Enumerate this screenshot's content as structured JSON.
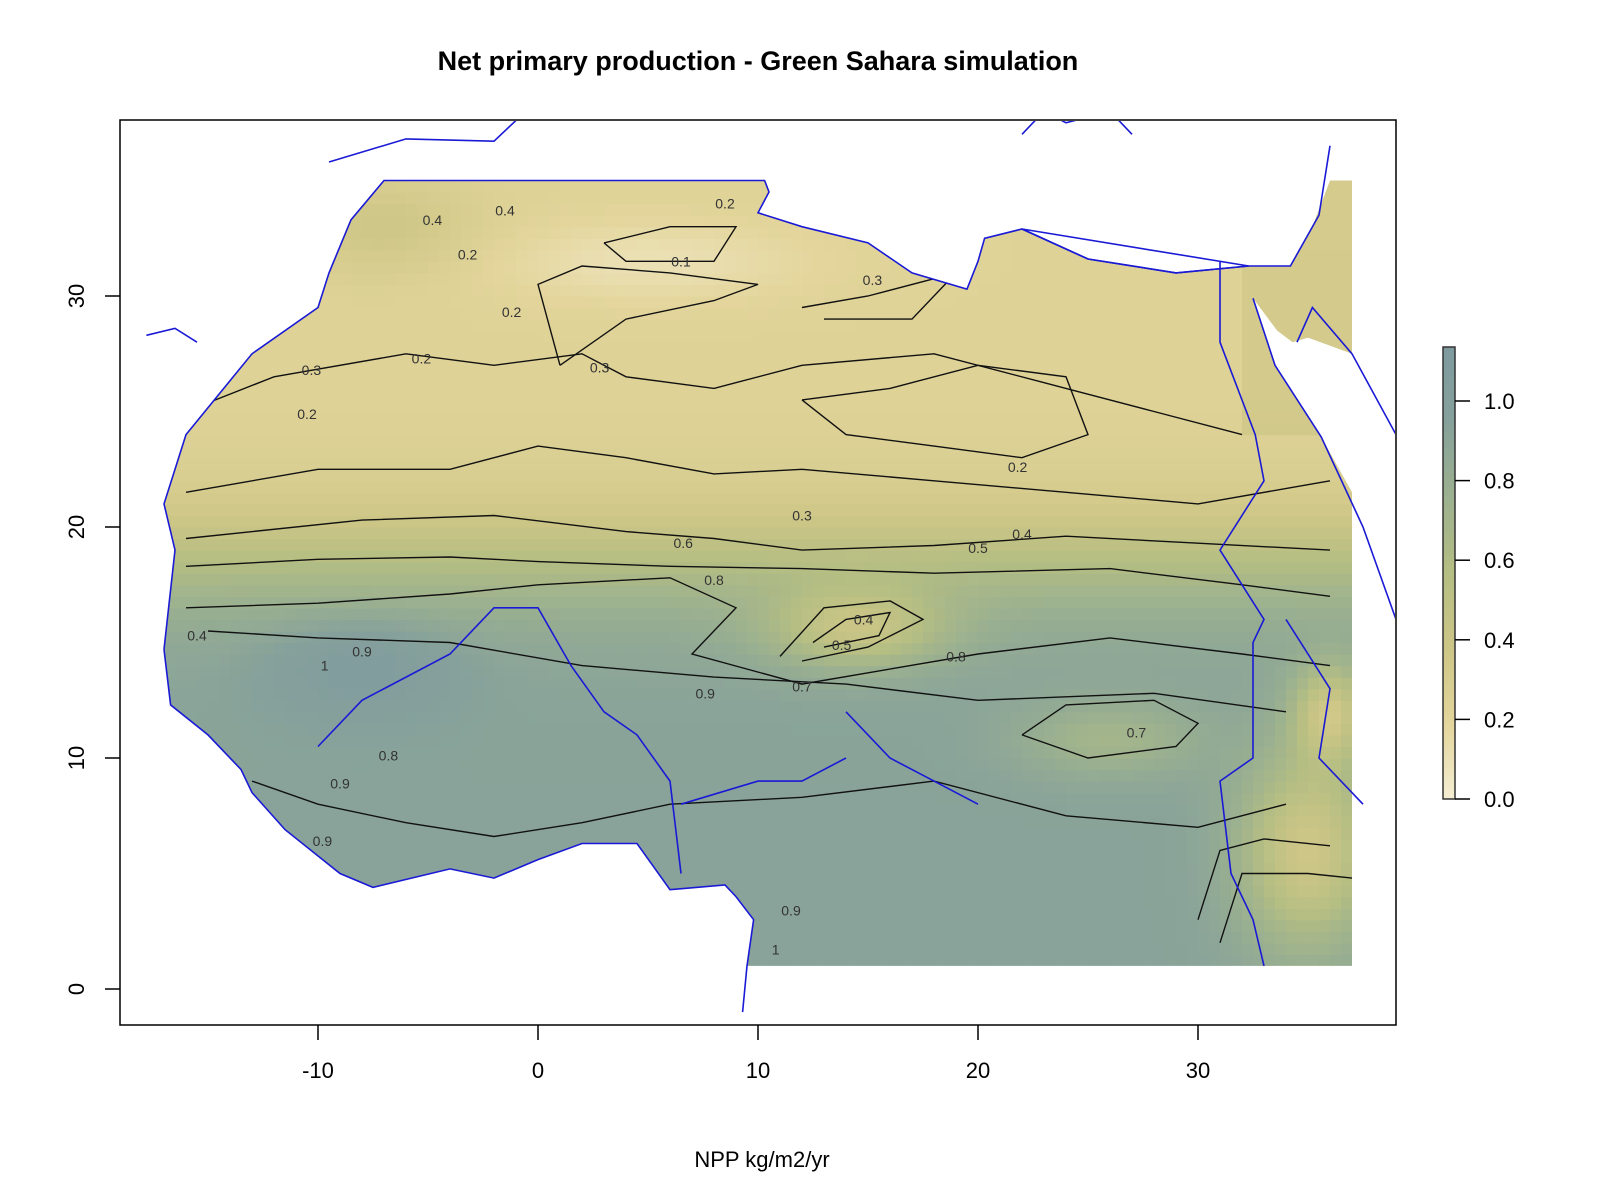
{
  "chart_data": {
    "type": "heatmap",
    "title": "Net primary production - Green Sahara simulation",
    "xlabel": "",
    "ylabel": "",
    "colorbar_label": "NPP kg/m2/yr",
    "xlim": [
      -19,
      39
    ],
    "ylim": [
      -1.5,
      37.6
    ],
    "x_ticks": [
      -10,
      0,
      10,
      20,
      30
    ],
    "y_ticks": [
      0,
      10,
      20,
      30
    ],
    "x_tick_labels": [
      "-10",
      "0",
      "10",
      "20",
      "30"
    ],
    "y_tick_labels": [
      "0",
      "10",
      "20",
      "30"
    ],
    "data_extent": {
      "lon": [
        -17,
        37
      ],
      "lat": [
        1,
        35
      ]
    },
    "colorbar": {
      "range": [
        0,
        1.13
      ],
      "ticks": [
        0.0,
        0.2,
        0.4,
        0.6,
        0.8,
        1.0
      ],
      "tick_labels": [
        "0.0",
        "0.2",
        "0.4",
        "0.6",
        "0.8",
        "1.0"
      ],
      "colors": [
        "#f4edd2",
        "#e3d59b",
        "#cdc686",
        "#b5be83",
        "#9cb18f",
        "#86a19b",
        "#7e9a9f"
      ]
    },
    "contour_levels": [
      0.1,
      0.2,
      0.3,
      0.4,
      0.5,
      0.6,
      0.7,
      0.8,
      0.9,
      1.0
    ],
    "contour_labels": [
      {
        "text": "0.1",
        "lon": 6.5,
        "lat": 31.5
      },
      {
        "text": "0.2",
        "lon": -3.2,
        "lat": 31.8
      },
      {
        "text": "0.2",
        "lon": -1.2,
        "lat": 29.3
      },
      {
        "text": "0.2",
        "lon": -5.3,
        "lat": 27.3
      },
      {
        "text": "0.2",
        "lon": -10.5,
        "lat": 24.9
      },
      {
        "text": "0.2",
        "lon": 21.8,
        "lat": 22.6
      },
      {
        "text": "0.2",
        "lon": 8.5,
        "lat": 34.0
      },
      {
        "text": "0.3",
        "lon": -10.3,
        "lat": 26.8
      },
      {
        "text": "0.3",
        "lon": 2.8,
        "lat": 26.9
      },
      {
        "text": "0.3",
        "lon": 15.2,
        "lat": 30.7
      },
      {
        "text": "0.3",
        "lon": 12.0,
        "lat": 20.5
      },
      {
        "text": "0.4",
        "lon": -4.8,
        "lat": 33.3
      },
      {
        "text": "0.4",
        "lon": -1.5,
        "lat": 33.7
      },
      {
        "text": "0.4",
        "lon": 22.0,
        "lat": 19.7
      },
      {
        "text": "0.4",
        "lon": 14.8,
        "lat": 16.0
      },
      {
        "text": "0.4",
        "lon": -15.5,
        "lat": 15.3
      },
      {
        "text": "0.5",
        "lon": 20.0,
        "lat": 19.1
      },
      {
        "text": "0.5",
        "lon": 13.8,
        "lat": 14.9
      },
      {
        "text": "0.6",
        "lon": 6.6,
        "lat": 19.3
      },
      {
        "text": "0.7",
        "lon": 12.0,
        "lat": 13.1
      },
      {
        "text": "0.7",
        "lon": 27.2,
        "lat": 11.1
      },
      {
        "text": "0.8",
        "lon": 8.0,
        "lat": 17.7
      },
      {
        "text": "0.8",
        "lon": 19.0,
        "lat": 14.4
      },
      {
        "text": "0.8",
        "lon": -6.8,
        "lat": 10.1
      },
      {
        "text": "0.9",
        "lon": -8.0,
        "lat": 14.6
      },
      {
        "text": "0.9",
        "lon": 7.6,
        "lat": 12.8
      },
      {
        "text": "0.9",
        "lon": -9.0,
        "lat": 8.9
      },
      {
        "text": "0.9",
        "lon": -9.8,
        "lat": 6.4
      },
      {
        "text": "0.9",
        "lon": 11.5,
        "lat": 3.4
      },
      {
        "text": "1",
        "lon": -9.7,
        "lat": 14.0
      },
      {
        "text": "1",
        "lon": 10.8,
        "lat": 1.7
      }
    ]
  }
}
